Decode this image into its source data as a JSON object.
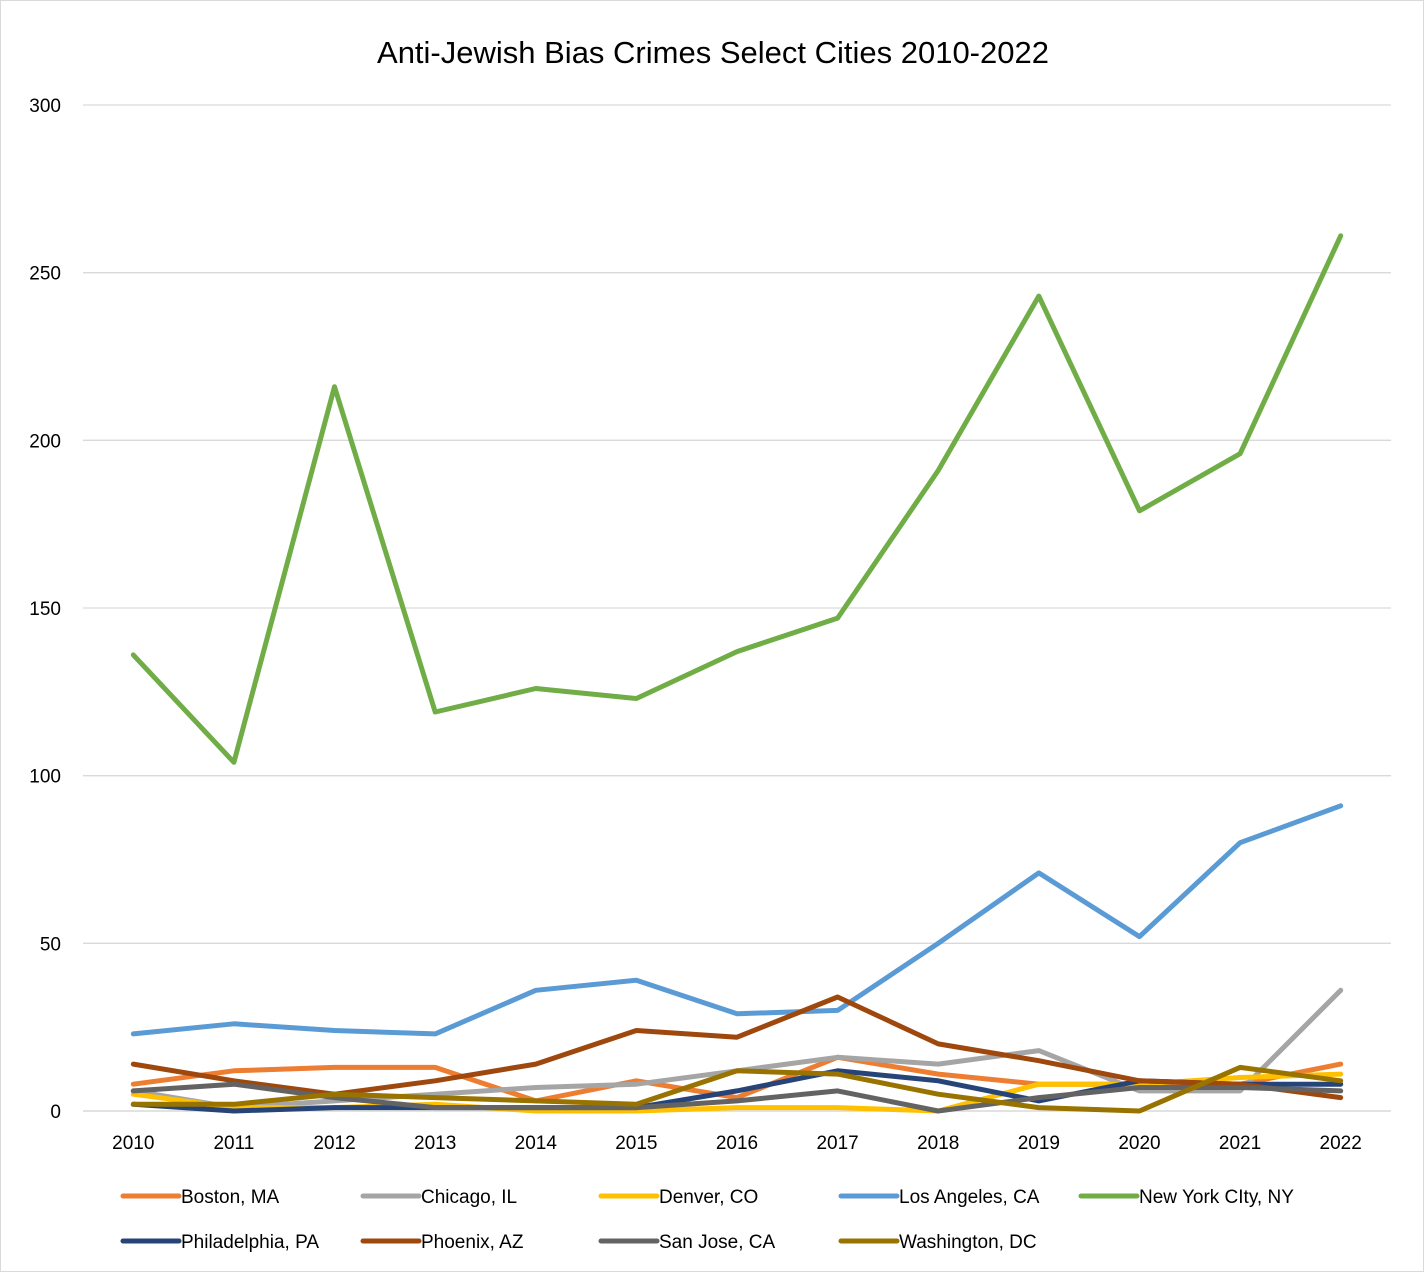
{
  "chart_data": {
    "type": "line",
    "title": "Anti-Jewish Bias Crimes Select Cities 2010-2022",
    "xlabel": "",
    "ylabel": "",
    "ylim": [
      0,
      300
    ],
    "yticks": [
      0,
      50,
      100,
      150,
      200,
      250,
      300
    ],
    "grid": true,
    "legend_position": "bottom",
    "categories": [
      "2010",
      "2011",
      "2012",
      "2013",
      "2014",
      "2015",
      "2016",
      "2017",
      "2018",
      "2019",
      "2020",
      "2021",
      "2022"
    ],
    "series": [
      {
        "name": "Boston, MA",
        "color": "#ED7D31",
        "values": [
          8,
          12,
          13,
          13,
          3,
          9,
          4,
          16,
          11,
          8,
          8,
          8,
          14
        ]
      },
      {
        "name": "Chicago, IL",
        "color": "#A5A5A5",
        "values": [
          6,
          1,
          3,
          5,
          7,
          8,
          12,
          16,
          14,
          18,
          6,
          6,
          36
        ]
      },
      {
        "name": "Denver, CO",
        "color": "#FFC000",
        "values": [
          5,
          1,
          1,
          2,
          0,
          0,
          1,
          1,
          0,
          8,
          8,
          10,
          11
        ]
      },
      {
        "name": "Los Angeles, CA",
        "color": "#5B9BD5",
        "values": [
          23,
          26,
          24,
          23,
          36,
          39,
          29,
          30,
          50,
          71,
          52,
          80,
          91
        ]
      },
      {
        "name": "New York CIty, NY",
        "color": "#70AD47",
        "values": [
          136,
          104,
          216,
          119,
          126,
          123,
          137,
          147,
          191,
          243,
          179,
          196,
          261
        ]
      },
      {
        "name": "Philadelphia, PA",
        "color": "#264478",
        "values": [
          2,
          0,
          1,
          1,
          1,
          1,
          6,
          12,
          9,
          3,
          9,
          8,
          8
        ]
      },
      {
        "name": "Phoenix, AZ",
        "color": "#9E480E",
        "values": [
          14,
          9,
          5,
          9,
          14,
          24,
          22,
          34,
          20,
          15,
          9,
          8,
          4
        ]
      },
      {
        "name": "San Jose, CA",
        "color": "#636363",
        "values": [
          6,
          8,
          4,
          1,
          1,
          1,
          3,
          6,
          0,
          4,
          7,
          7,
          6
        ]
      },
      {
        "name": "Washington, DC",
        "color": "#997300",
        "values": [
          2,
          2,
          5,
          4,
          3,
          2,
          12,
          11,
          5,
          1,
          0,
          13,
          9
        ]
      }
    ]
  }
}
